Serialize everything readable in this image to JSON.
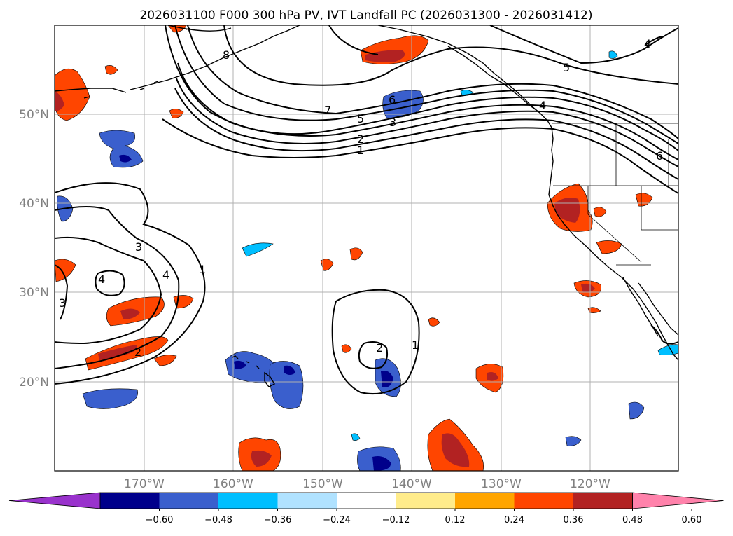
{
  "title": "2026031100 F000 300 hPa PV, IVT Landfall PC (2026031300 - 2026031412)",
  "lon_labels": [
    "170°W",
    "160°W",
    "150°W",
    "140°W",
    "130°W",
    "120°W"
  ],
  "lat_labels": [
    "50°N",
    "40°N",
    "30°N",
    "20°N"
  ],
  "colorbar": {
    "colors": [
      "#9932cc",
      "#00008b",
      "#3a5fcd",
      "#00bfff",
      "#b0e2ff",
      "#ffffff",
      "#ffec8b",
      "#ffa500",
      "#ff4500",
      "#b22222",
      "#ff82ab"
    ],
    "ticks": [
      "−0.60",
      "−0.48",
      "−0.36",
      "−0.24",
      "−0.12",
      "0.12",
      "0.24",
      "0.36",
      "0.48",
      "0.60"
    ]
  },
  "contour_labels": {
    "jet": [
      "8",
      "7",
      "5",
      "6",
      "3",
      "2",
      "1",
      "5",
      "4",
      "6"
    ],
    "west_high": [
      "3",
      "4",
      "4",
      "1",
      "3",
      "2"
    ],
    "center_high": [
      "2",
      "1"
    ],
    "ne_pacific": [
      "4"
    ]
  }
}
